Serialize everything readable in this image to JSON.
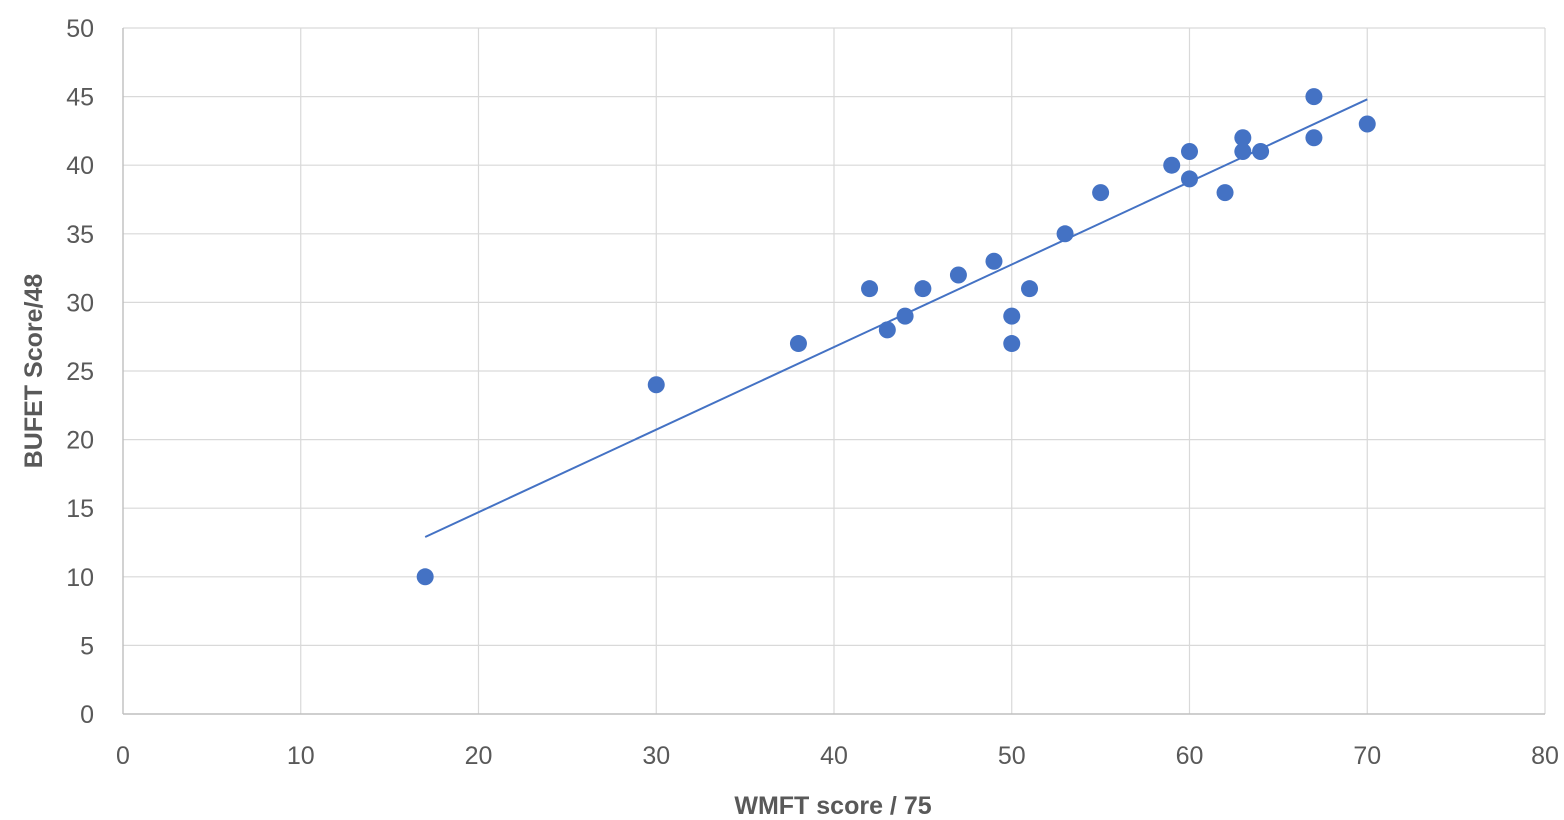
{
  "chart_data": {
    "type": "scatter",
    "title": "",
    "xlabel": "WMFT score / 75",
    "ylabel": "BUFET Score/48",
    "xlim": [
      0,
      80
    ],
    "ylim": [
      0,
      50
    ],
    "xticks": [
      0,
      10,
      20,
      30,
      40,
      50,
      60,
      70,
      80
    ],
    "yticks": [
      0,
      5,
      10,
      15,
      20,
      25,
      30,
      35,
      40,
      45,
      50
    ],
    "grid": true,
    "legend": "none",
    "colors": {
      "marker": "#4472c4",
      "trendline": "#4472c4",
      "grid": "#d9d9d9",
      "text": "#595959"
    },
    "points": [
      {
        "x": 17,
        "y": 10
      },
      {
        "x": 30,
        "y": 24
      },
      {
        "x": 38,
        "y": 27
      },
      {
        "x": 42,
        "y": 31
      },
      {
        "x": 43,
        "y": 28
      },
      {
        "x": 44,
        "y": 29
      },
      {
        "x": 45,
        "y": 31
      },
      {
        "x": 47,
        "y": 32
      },
      {
        "x": 49,
        "y": 33
      },
      {
        "x": 50,
        "y": 29
      },
      {
        "x": 50,
        "y": 27
      },
      {
        "x": 51,
        "y": 31
      },
      {
        "x": 53,
        "y": 35
      },
      {
        "x": 55,
        "y": 38
      },
      {
        "x": 59,
        "y": 40
      },
      {
        "x": 60,
        "y": 41
      },
      {
        "x": 60,
        "y": 39
      },
      {
        "x": 62,
        "y": 38
      },
      {
        "x": 63,
        "y": 42
      },
      {
        "x": 63,
        "y": 41
      },
      {
        "x": 64,
        "y": 41
      },
      {
        "x": 67,
        "y": 45
      },
      {
        "x": 67,
        "y": 42
      },
      {
        "x": 70,
        "y": 43
      }
    ],
    "trendline": {
      "type": "linear",
      "x": [
        17,
        70
      ],
      "y": [
        12.9,
        44.8
      ]
    }
  }
}
